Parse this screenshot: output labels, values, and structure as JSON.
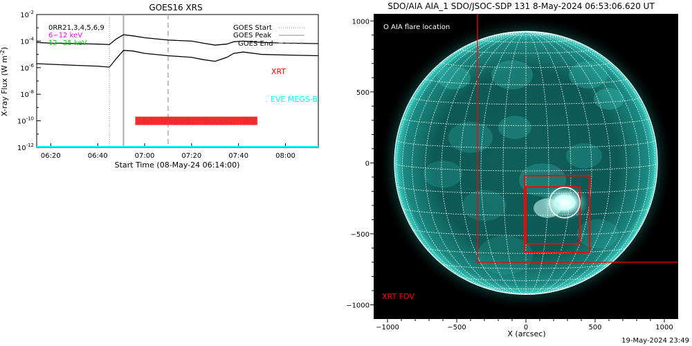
{
  "left": {
    "title": "GOES16 XRS",
    "ylabel_text": "X-ray Flux (W m",
    "ylabel_sup": "-2",
    "ylabel_end": ")",
    "xlabel": "Start Time (08-May-24 06:14:00)",
    "xticks": [
      "06:20",
      "06:40",
      "07:00",
      "07:20",
      "07:40",
      "08:00"
    ],
    "ytick_base": "10",
    "ytick_exps": [
      "-2",
      "-4",
      "-6",
      "-8",
      "-10",
      "-12"
    ],
    "legend_left": [
      {
        "label": "0RR21,3,4,5,6,9",
        "color": "#000000"
      },
      {
        "label": "6−12 keV",
        "color": "#ff00ff"
      },
      {
        "label": "12−25 keV",
        "color": "#00cc00"
      }
    ],
    "legend_right": [
      {
        "label": "GOES Start",
        "style": "dotted"
      },
      {
        "label": "GOES Peak",
        "style": "solid"
      },
      {
        "label": "GOES End",
        "style": "dashed"
      }
    ],
    "xrt_label": "XRT",
    "xrt_color": "#ff0000",
    "eve_label": "EVE MEGS-B",
    "eve_color": "#00ffff"
  },
  "right": {
    "title": "SDO/AIA AIA_1 SDO/JSOC-SDP 131  8-May-2024 06:53:06.620 UT",
    "xlabel": "X (arcsec)",
    "xticks": [
      "−1000",
      "−500",
      "0",
      "500",
      "1000"
    ],
    "yticks": [
      "1000",
      "500",
      "0",
      "−500",
      "−1000"
    ],
    "flare_legend": "O AIA flare location",
    "fov_label": "XRT FOV",
    "fov_color": "#ff0000",
    "grid_color": "#ffffff"
  },
  "stamp": "19-May-2024 23:49",
  "chart_data": [
    {
      "type": "line",
      "title": "GOES16 XRS",
      "xlabel": "Start Time (08-May-24 06:14:00)",
      "ylabel": "X-ray Flux (W m-2)",
      "yscale": "log",
      "xlim": [
        "06:14",
        "08:14"
      ],
      "ylim": [
        1e-12,
        0.01
      ],
      "x": [
        "06:14",
        "06:20",
        "06:30",
        "06:40",
        "06:45",
        "06:48",
        "06:51",
        "06:55",
        "07:00",
        "07:10",
        "07:20",
        "07:25",
        "07:30",
        "07:35",
        "07:38",
        "07:42",
        "07:50",
        "08:00",
        "08:14"
      ],
      "series": [
        {
          "name": "",
          "color": "#000000",
          "values": [
            8e-05,
            7e-05,
            6.5e-05,
            6e-05,
            5.5e-05,
            0.00015,
            0.0003,
            0.00025,
            0.00018,
            0.00012,
            0.0001,
            7e-05,
            5e-05,
            6e-05,
            9e-05,
            0.0001,
            8e-05,
            7e-05,
            6.5e-05
          ]
        },
        {
          "name": "",
          "color": "#000000",
          "values": [
            2e-06,
            1.8e-06,
            1.5e-06,
            1.3e-06,
            1.1e-06,
            5e-06,
            2e-05,
            1.8e-05,
            1.2e-05,
            8e-06,
            6e-06,
            4e-06,
            3e-06,
            6e-06,
            1.2e-05,
            1.5e-05,
            1e-05,
            9e-06,
            8e-06
          ]
        }
      ],
      "markers": {
        "goes_start": "06:45",
        "goes_peak": "06:51",
        "goes_end": "07:10"
      },
      "xrt_interval": [
        "06:56",
        "07:48"
      ],
      "eve_level": 1e-12,
      "legend": "top"
    },
    {
      "type": "map",
      "title": "SDO/AIA AIA_1 SDO/JSOC-SDP 131  8-May-2024 06:53:06.620 UT",
      "xlabel": "X (arcsec)",
      "xlim": [
        -1100,
        1100
      ],
      "ylim": [
        -1100,
        1050
      ],
      "solar_radius_arcsec": 950,
      "flare_location": [
        280,
        -280
      ],
      "xrt_fov_boxes": [
        [
          -350,
          -700,
          2000,
          2000
        ],
        [
          -10,
          -630,
          470,
          540
        ],
        [
          0,
          -570,
          390,
          400
        ]
      ]
    }
  ]
}
